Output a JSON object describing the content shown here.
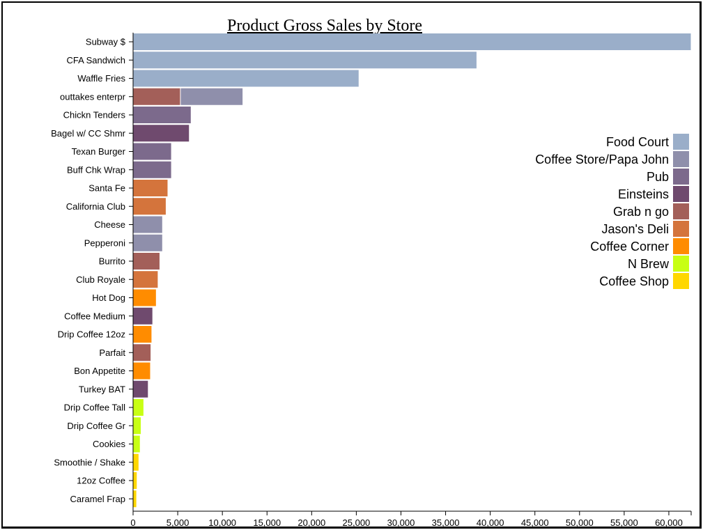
{
  "chart_data": {
    "type": "bar",
    "orientation": "horizontal",
    "stacked": true,
    "title": "Product Gross Sales by Store",
    "xlim": [
      0,
      62500
    ],
    "x_ticks": [
      "0",
      "5,000",
      "10,000",
      "15,000",
      "20,000",
      "25,000",
      "30,000",
      "35,000",
      "40,000",
      "45,000",
      "50,000",
      "55,000",
      "60,000"
    ],
    "x_tick_values": [
      0,
      5000,
      10000,
      15000,
      20000,
      25000,
      30000,
      35000,
      40000,
      45000,
      50000,
      55000,
      60000
    ],
    "legend_position": "right",
    "series": [
      {
        "name": "Food Court",
        "color": "#9aaec9"
      },
      {
        "name": "Coffee Store/Papa John",
        "color": "#8f8fab"
      },
      {
        "name": "Pub",
        "color": "#7c6a8c"
      },
      {
        "name": "Einsteins",
        "color": "#6f4a6e"
      },
      {
        "name": "Grab n go",
        "color": "#a35f59"
      },
      {
        "name": "Jason's Deli",
        "color": "#d4743c"
      },
      {
        "name": "Coffee Corner",
        "color": "#ff8c00"
      },
      {
        "name": "N Brew",
        "color": "#c8ff14"
      },
      {
        "name": "Coffee Shop",
        "color": "#ffd700"
      }
    ],
    "products": [
      {
        "label": "Subway $",
        "segments": [
          {
            "store": "Food Court",
            "value": 62500
          }
        ]
      },
      {
        "label": "CFA Sandwich",
        "segments": [
          {
            "store": "Food Court",
            "value": 38500
          }
        ]
      },
      {
        "label": "Waffle Fries",
        "segments": [
          {
            "store": "Food Court",
            "value": 25300
          }
        ]
      },
      {
        "label": "outtakes enterpr",
        "segments": [
          {
            "store": "Grab n go",
            "value": 5300
          },
          {
            "store": "Coffee Store/Papa John",
            "value": 7000
          }
        ]
      },
      {
        "label": "Chickn Tenders",
        "segments": [
          {
            "store": "Pub",
            "value": 6500
          }
        ]
      },
      {
        "label": "Bagel w/ CC Shmr",
        "segments": [
          {
            "store": "Einsteins",
            "value": 6300
          }
        ]
      },
      {
        "label": "Texan Burger",
        "segments": [
          {
            "store": "Pub",
            "value": 4300
          }
        ]
      },
      {
        "label": "Buff Chk Wrap",
        "segments": [
          {
            "store": "Pub",
            "value": 4300
          }
        ]
      },
      {
        "label": "Santa Fe",
        "segments": [
          {
            "store": "Jason's Deli",
            "value": 3900
          }
        ]
      },
      {
        "label": "California Club",
        "segments": [
          {
            "store": "Jason's Deli",
            "value": 3700
          }
        ]
      },
      {
        "label": "Cheese",
        "segments": [
          {
            "store": "Coffee Store/Papa John",
            "value": 3300
          }
        ]
      },
      {
        "label": "Pepperoni",
        "segments": [
          {
            "store": "Coffee Store/Papa John",
            "value": 3300
          }
        ]
      },
      {
        "label": "Burrito",
        "segments": [
          {
            "store": "Grab n go",
            "value": 3000
          }
        ]
      },
      {
        "label": "Club Royale",
        "segments": [
          {
            "store": "Jason's Deli",
            "value": 2800
          }
        ]
      },
      {
        "label": "Hot Dog",
        "segments": [
          {
            "store": "Coffee Corner",
            "value": 2600
          }
        ]
      },
      {
        "label": "Coffee Medium",
        "segments": [
          {
            "store": "Einsteins",
            "value": 2200
          }
        ]
      },
      {
        "label": "Drip Coffee 12oz",
        "segments": [
          {
            "store": "Coffee Corner",
            "value": 2100
          }
        ]
      },
      {
        "label": "Parfait",
        "segments": [
          {
            "store": "Grab n go",
            "value": 2000
          }
        ]
      },
      {
        "label": "Bon Appetite",
        "segments": [
          {
            "store": "Coffee Corner",
            "value": 1950
          }
        ]
      },
      {
        "label": "Turkey BAT",
        "segments": [
          {
            "store": "Einsteins",
            "value": 1700
          }
        ]
      },
      {
        "label": "Drip Coffee Tall",
        "segments": [
          {
            "store": "N Brew",
            "value": 1200
          }
        ]
      },
      {
        "label": "Drip Coffee Gr",
        "segments": [
          {
            "store": "N Brew",
            "value": 900
          }
        ]
      },
      {
        "label": "Cookies",
        "segments": [
          {
            "store": "N Brew",
            "value": 800
          }
        ]
      },
      {
        "label": "Smoothie / Shake",
        "segments": [
          {
            "store": "Coffee Shop",
            "value": 650
          }
        ]
      },
      {
        "label": "12oz Coffee",
        "segments": [
          {
            "store": "Coffee Shop",
            "value": 450
          }
        ]
      },
      {
        "label": "Caramel Frap",
        "segments": [
          {
            "store": "Coffee Shop",
            "value": 400
          }
        ]
      }
    ]
  }
}
